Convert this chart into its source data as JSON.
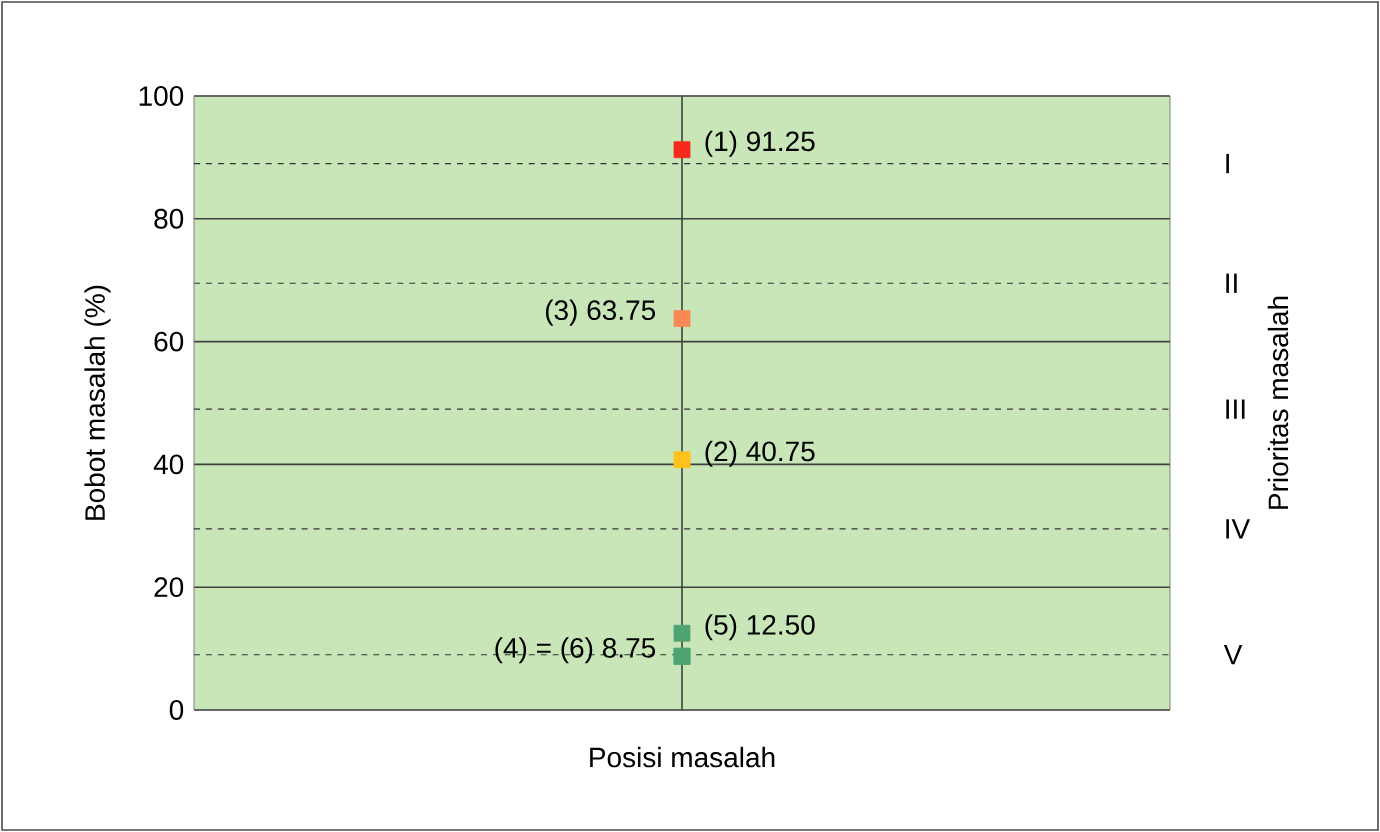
{
  "chart_data": {
    "type": "scatter",
    "ylabel": "Bobot masalah (%)",
    "xlabel": "Posisi masalah",
    "y2label": "Prioritas masalah",
    "categories": [
      null
    ],
    "series": [
      {
        "x": [
          null,
          null,
          null,
          null,
          null,
          null
        ],
        "values": [
          91.25,
          40.75,
          63.75,
          8.75,
          12.5,
          8.75
        ],
        "colors": [
          "#f52a1c",
          "#ffc21a",
          "#f98a55",
          "#4fa371",
          "#4fa371",
          "#4fa371"
        ],
        "value_labels": [
          "(1) 91.25",
          "(2) 40.75",
          "(3) 63.75",
          "(4) = (6) 8.75",
          "(5) 12.50",
          null
        ]
      }
    ],
    "ylim": [
      0,
      100
    ],
    "yticks": [
      0,
      20,
      40,
      60,
      80,
      100
    ],
    "grid": true,
    "marker": "square",
    "ref_lines": [
      {
        "axis": "y",
        "value": 89,
        "label": "I",
        "line_style": "dashed"
      },
      {
        "axis": "y",
        "value": 69.5,
        "label": "II",
        "line_style": "dashed"
      },
      {
        "axis": "y",
        "value": 49,
        "label": "III",
        "line_style": "dashed"
      },
      {
        "axis": "y",
        "value": 29.5,
        "label": "IV",
        "line_style": "dashed"
      },
      {
        "axis": "y",
        "value": 9,
        "label": "V",
        "line_style": "dashed"
      }
    ]
  }
}
